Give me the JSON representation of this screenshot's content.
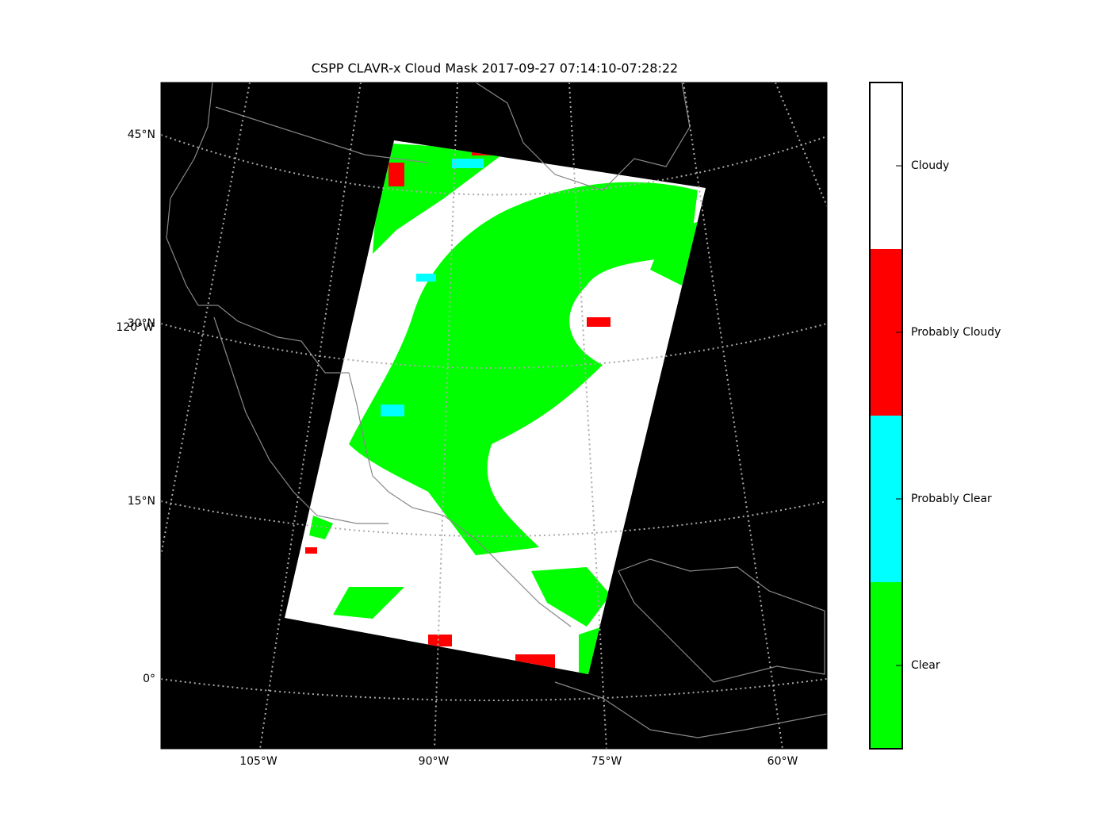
{
  "title": "CSPP CLAVR-x Cloud Mask 2017-09-27 07:14:10-07:28:22",
  "map": {
    "lat_labels": [
      "45°N",
      "30°N",
      "15°N",
      "0°"
    ],
    "lon_labels": [
      "105°W",
      "90°W",
      "75°W",
      "60°W"
    ],
    "edge_lon_label": "120°W"
  },
  "legend": {
    "classes": [
      {
        "label": "Cloudy",
        "color": "#ffffff"
      },
      {
        "label": "Probably Cloudy",
        "color": "#ff0000"
      },
      {
        "label": "Probably Clear",
        "color": "#00ffff"
      },
      {
        "label": "Clear",
        "color": "#00ff00"
      }
    ]
  }
}
